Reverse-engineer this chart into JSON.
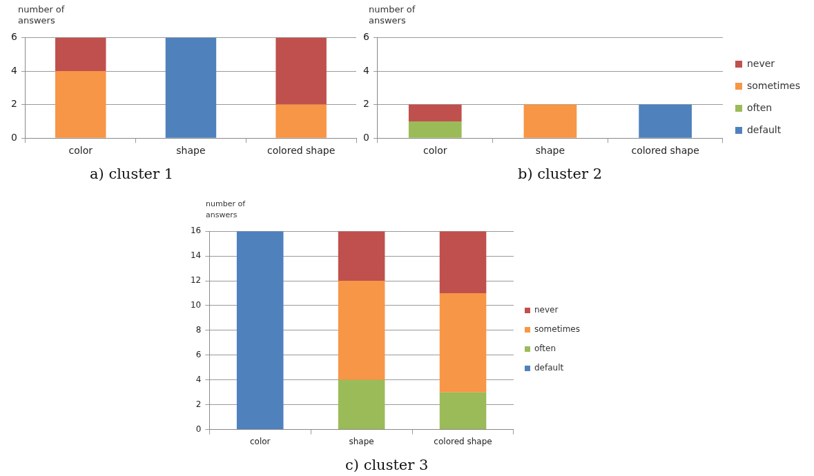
{
  "chart_data": [
    {
      "type": "bar",
      "title": "a) cluster 1",
      "ylabel": "number of answers",
      "categories": [
        "color",
        "shape",
        "colored shape"
      ],
      "stacked": true,
      "ylim": [
        0,
        6
      ],
      "yticks": [
        0,
        2,
        4,
        6
      ],
      "grid": "y",
      "legend": false,
      "series": [
        {
          "color": "#4f81bd",
          "values": [
            0,
            6,
            0
          ]
        },
        {
          "color": "#f79646",
          "values": [
            4,
            0,
            2
          ]
        },
        {
          "color": "#c0504d",
          "values": [
            2,
            0,
            4
          ]
        }
      ]
    },
    {
      "type": "bar",
      "title": "b) cluster 2",
      "ylabel": "number of answers",
      "categories": [
        "color",
        "shape",
        "colored shape"
      ],
      "stacked": true,
      "ylim": [
        0,
        6
      ],
      "yticks": [
        0,
        2,
        4,
        6
      ],
      "grid": "y",
      "legend": "right",
      "series": [
        {
          "name": "default",
          "color": "#4f81bd",
          "values": [
            0,
            0,
            2
          ]
        },
        {
          "name": "often",
          "color": "#9bbb59",
          "values": [
            1,
            0,
            0
          ]
        },
        {
          "name": "sometimes",
          "color": "#f79646",
          "values": [
            0,
            2,
            0
          ]
        },
        {
          "name": "never",
          "color": "#c0504d",
          "values": [
            1,
            0,
            0
          ]
        }
      ]
    },
    {
      "type": "bar",
      "title": "c) cluster 3",
      "ylabel": "number of answers",
      "categories": [
        "color",
        "shape",
        "colored shape"
      ],
      "stacked": true,
      "ylim": [
        0,
        16
      ],
      "yticks": [
        0,
        2,
        4,
        6,
        8,
        10,
        12,
        14,
        16
      ],
      "grid": "y",
      "legend": "right",
      "series": [
        {
          "name": "default",
          "color": "#4f81bd",
          "values": [
            16,
            0,
            0
          ]
        },
        {
          "name": "often",
          "color": "#9bbb59",
          "values": [
            0,
            4,
            3
          ]
        },
        {
          "name": "sometimes",
          "color": "#f79646",
          "values": [
            0,
            8,
            8
          ]
        },
        {
          "name": "never",
          "color": "#c0504d",
          "values": [
            0,
            4,
            5
          ]
        }
      ]
    }
  ]
}
